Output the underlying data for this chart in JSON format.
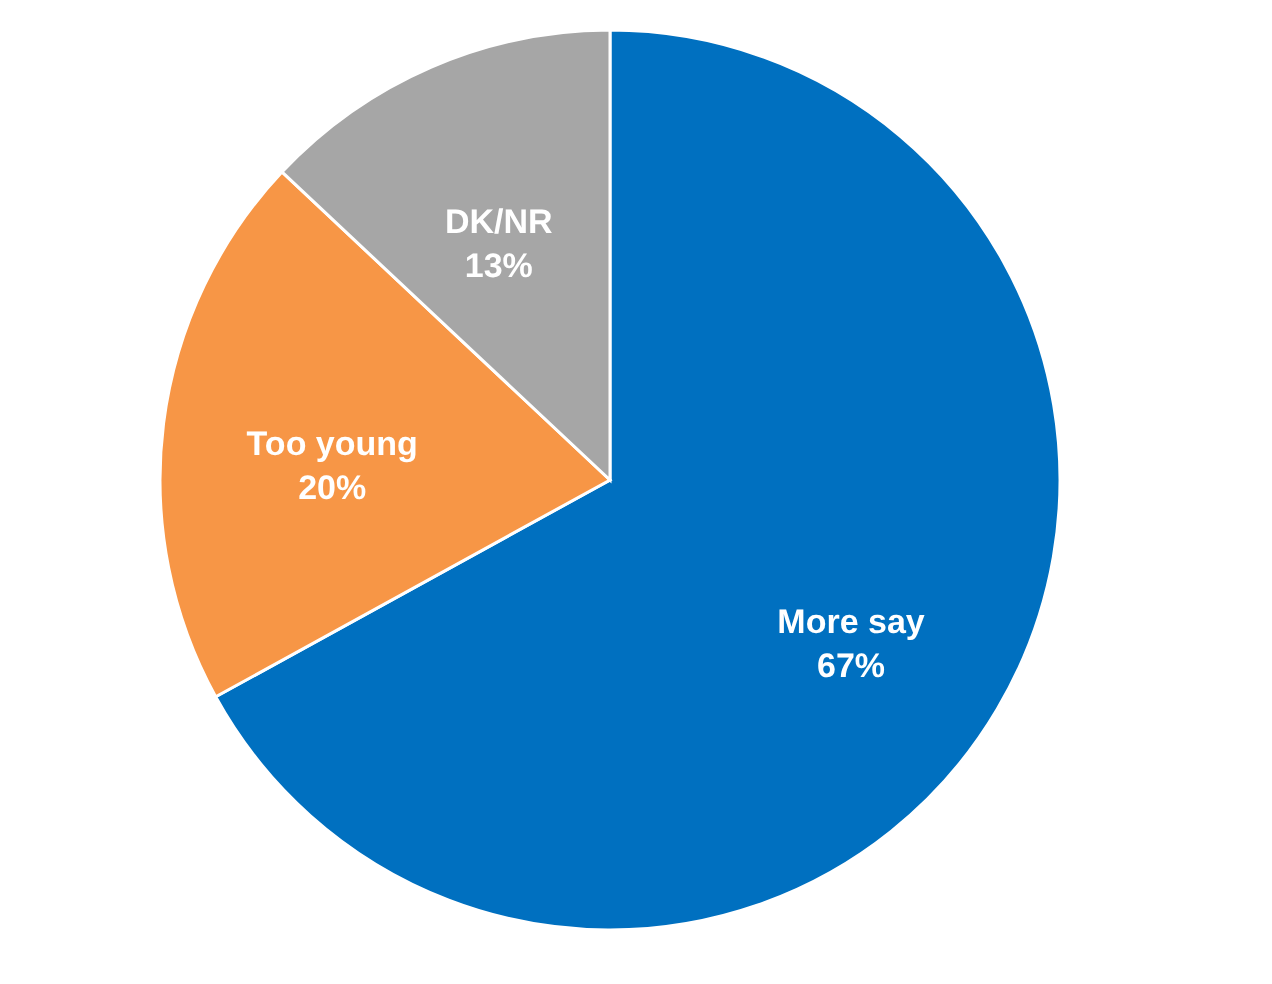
{
  "chart_data": {
    "type": "pie",
    "categories": [
      "More say",
      "Too young",
      "DK/NR"
    ],
    "values": [
      67,
      20,
      13
    ],
    "colors": [
      "#0070c0",
      "#f79646",
      "#a6a6a6"
    ],
    "value_labels": [
      "67%",
      "20%",
      "13%"
    ],
    "legend": false
  }
}
